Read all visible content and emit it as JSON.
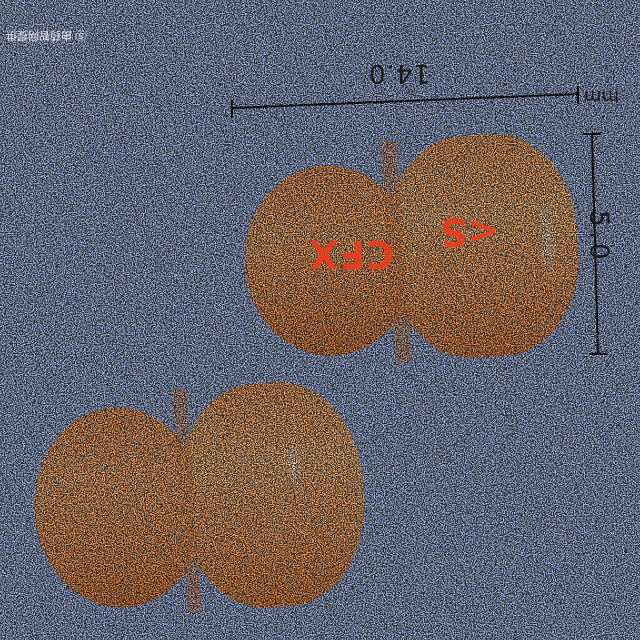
{
  "photo": {
    "background_color": "#a9bde6",
    "capsule_color": "#f6a56b",
    "imprint_color": "#e0401f"
  },
  "measurements": {
    "length": "14.0",
    "width": "5.0",
    "unit": "mm"
  },
  "imprint": {
    "text": "CFX",
    "logo": "<S"
  },
  "watermark": {
    "text": "Ⓢ 由药智网提供"
  }
}
